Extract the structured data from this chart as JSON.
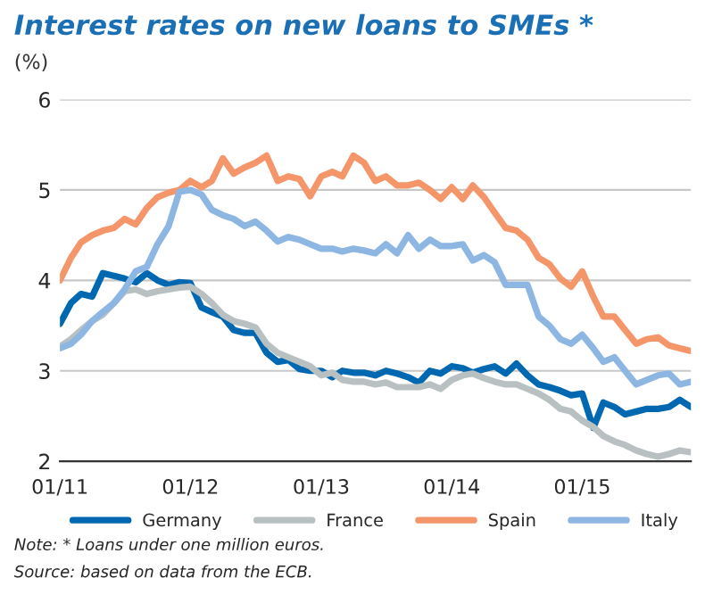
{
  "chart_data": {
    "type": "line",
    "title": "Interest rates on new loans to SMEs *",
    "ylabel": "(%)",
    "x": [
      "2011-01",
      "2011-02",
      "2011-03",
      "2011-04",
      "2011-05",
      "2011-06",
      "2011-07",
      "2011-08",
      "2011-09",
      "2011-10",
      "2011-11",
      "2011-12",
      "2012-01",
      "2012-02",
      "2012-03",
      "2012-04",
      "2012-05",
      "2012-06",
      "2012-07",
      "2012-08",
      "2012-09",
      "2012-10",
      "2012-11",
      "2012-12",
      "2013-01",
      "2013-02",
      "2013-03",
      "2013-04",
      "2013-05",
      "2013-06",
      "2013-07",
      "2013-08",
      "2013-09",
      "2013-10",
      "2013-11",
      "2013-12",
      "2014-01",
      "2014-02",
      "2014-03",
      "2014-04",
      "2014-05",
      "2014-06",
      "2014-07",
      "2014-08",
      "2014-09",
      "2014-10",
      "2014-11",
      "2014-12",
      "2015-01",
      "2015-02",
      "2015-03",
      "2015-04",
      "2015-05",
      "2015-06",
      "2015-07",
      "2015-08",
      "2015-09",
      "2015-10",
      "2015-11"
    ],
    "series": [
      {
        "name": "Germany",
        "color": "#0067b1",
        "values": [
          3.52,
          3.75,
          3.85,
          3.82,
          4.08,
          4.05,
          4.02,
          3.98,
          4.08,
          4.0,
          3.95,
          3.98,
          3.97,
          3.7,
          3.65,
          3.6,
          3.45,
          3.42,
          3.42,
          3.2,
          3.1,
          3.12,
          3.02,
          3.0,
          3.0,
          2.93,
          3.0,
          2.98,
          2.98,
          2.95,
          3.0,
          2.97,
          2.93,
          2.87,
          3.0,
          2.97,
          3.05,
          3.03,
          2.98,
          3.02,
          3.05,
          2.97,
          3.08,
          2.95,
          2.85,
          2.82,
          2.78,
          2.73,
          2.75,
          2.37,
          2.65,
          2.6,
          2.52,
          2.55,
          2.58,
          2.58,
          2.6,
          2.68,
          2.6
        ]
      },
      {
        "name": "France",
        "color": "#b8c0c2",
        "values": [
          3.27,
          3.35,
          3.45,
          3.55,
          3.62,
          3.75,
          3.88,
          3.9,
          3.85,
          3.88,
          3.9,
          3.92,
          3.93,
          3.85,
          3.75,
          3.62,
          3.55,
          3.52,
          3.48,
          3.3,
          3.2,
          3.15,
          3.1,
          3.05,
          2.95,
          2.98,
          2.9,
          2.88,
          2.88,
          2.85,
          2.87,
          2.82,
          2.82,
          2.82,
          2.85,
          2.8,
          2.9,
          2.95,
          2.97,
          2.92,
          2.88,
          2.85,
          2.85,
          2.8,
          2.75,
          2.68,
          2.58,
          2.55,
          2.45,
          2.38,
          2.28,
          2.22,
          2.18,
          2.12,
          2.08,
          2.05,
          2.08,
          2.12,
          2.1
        ]
      },
      {
        "name": "Spain",
        "color": "#f4956a",
        "values": [
          4.0,
          4.25,
          4.42,
          4.5,
          4.55,
          4.58,
          4.68,
          4.62,
          4.8,
          4.92,
          4.97,
          5.0,
          5.1,
          5.03,
          5.1,
          5.35,
          5.18,
          5.25,
          5.3,
          5.38,
          5.1,
          5.15,
          5.12,
          4.93,
          5.15,
          5.2,
          5.15,
          5.38,
          5.3,
          5.1,
          5.15,
          5.05,
          5.05,
          5.08,
          5.0,
          4.9,
          5.03,
          4.9,
          5.05,
          4.92,
          4.75,
          4.58,
          4.55,
          4.45,
          4.25,
          4.18,
          4.02,
          3.93,
          4.1,
          3.82,
          3.6,
          3.6,
          3.45,
          3.3,
          3.35,
          3.37,
          3.28,
          3.25,
          3.22
        ]
      },
      {
        "name": "Italy",
        "color": "#8db6e3",
        "values": [
          3.25,
          3.3,
          3.4,
          3.55,
          3.65,
          3.75,
          3.9,
          4.1,
          4.15,
          4.4,
          4.6,
          4.98,
          5.0,
          4.95,
          4.78,
          4.72,
          4.68,
          4.6,
          4.65,
          4.55,
          4.43,
          4.48,
          4.45,
          4.4,
          4.35,
          4.35,
          4.32,
          4.35,
          4.33,
          4.3,
          4.4,
          4.3,
          4.5,
          4.35,
          4.45,
          4.38,
          4.38,
          4.4,
          4.22,
          4.28,
          4.2,
          3.95,
          3.95,
          3.95,
          3.6,
          3.5,
          3.35,
          3.3,
          3.4,
          3.25,
          3.1,
          3.15,
          3.0,
          2.85,
          2.9,
          2.95,
          2.97,
          2.85,
          2.88
        ]
      }
    ],
    "xlim": [
      "2011-01",
      "2015-11"
    ],
    "xticks": [
      {
        "value": "2011-01",
        "label": "01/11"
      },
      {
        "value": "2012-01",
        "label": "01/12"
      },
      {
        "value": "2013-01",
        "label": "01/13"
      },
      {
        "value": "2014-01",
        "label": "01/14"
      },
      {
        "value": "2015-01",
        "label": "01/15"
      }
    ],
    "ylim": [
      2,
      6
    ],
    "yticks": [
      2,
      3,
      4,
      5,
      6
    ],
    "grid": "y",
    "legend": "bottom",
    "line_style": "solid",
    "annotations": [
      "Note: * Loans under one million euros.",
      "Source: based on data from the ECB."
    ]
  }
}
